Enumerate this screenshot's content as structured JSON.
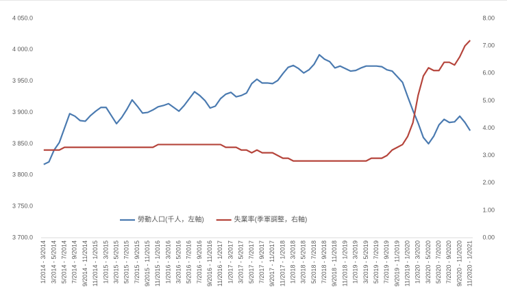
{
  "chart_data": {
    "type": "line",
    "categories": [
      "1/2014 - 3/2014",
      null,
      "3/2014 - 5/2014",
      null,
      "5/2014 - 7/2014",
      null,
      "7/2014 - 9/2014",
      null,
      "9/2014 - 11/2014",
      null,
      "11/2014 - 1/2015",
      null,
      "1/2015 - 3/2015",
      null,
      "3/2015 - 5/2015",
      null,
      "5/2015 - 7/2015",
      null,
      "7/2015 - 9/2015",
      null,
      "9/2015 - 11/2015",
      null,
      "11/2015 - 1/2016",
      null,
      "1/2016 - 3/2016",
      null,
      "3/2016 - 5/2016",
      null,
      "5/2016 - 7/2016",
      null,
      "7/2016 - 9/2016",
      null,
      "9/2016 - 11/2016",
      null,
      "11/2016 - 1/2017",
      null,
      "1/2017 - 3/2017",
      null,
      "3/2017 - 5/2017",
      null,
      "5/2017 - 7/2017",
      null,
      "7/2017 - 9/2017",
      null,
      "9/2017 - 11/2017",
      null,
      "11/2017 - 1/2018",
      null,
      "1/2018 - 3/2018",
      null,
      "3/2018 - 5/2018",
      null,
      "5/2018 - 7/2018",
      null,
      "7/2018 - 9/2018",
      null,
      "9/2018 - 11/2018",
      null,
      "11/2018 - 1/2019",
      null,
      "1/2019 - 3/2019",
      null,
      "3/2019 - 5/2019",
      null,
      "5/2019 - 7/2019",
      null,
      "7/2019 - 9/2019",
      null,
      "9/2019 - 11/2019",
      null,
      "11/2019 - 1/2020",
      null,
      "1/2020 - 3/2020",
      null,
      "3/2020 - 5/2020",
      null,
      "5/2020 - 7/2020",
      null,
      "7/2020 - 9/2020",
      null,
      "9/2020 - 11/2020",
      null,
      "11/2020 - 1/2021"
    ],
    "series": [
      {
        "name": "勞動人口(千人，左軸)",
        "color": "#4a7ab0",
        "axis": "y",
        "values": [
          3817,
          3821,
          3840,
          3852,
          3875,
          3898,
          3894,
          3887,
          3886,
          3895,
          3902,
          3908,
          3908,
          3895,
          3882,
          3892,
          3905,
          3920,
          3910,
          3899,
          3900,
          3904,
          3909,
          3911,
          3914,
          3908,
          3902,
          3911,
          3922,
          3933,
          3927,
          3919,
          3907,
          3910,
          3922,
          3929,
          3932,
          3925,
          3927,
          3931,
          3946,
          3953,
          3947,
          3947,
          3946,
          3951,
          3962,
          3972,
          3975,
          3970,
          3963,
          3968,
          3977,
          3992,
          3985,
          3981,
          3971,
          3974,
          3970,
          3966,
          3967,
          3971,
          3974,
          3974,
          3974,
          3973,
          3968,
          3966,
          3957,
          3948,
          3925,
          3903,
          3883,
          3860,
          3850,
          3862,
          3880,
          3889,
          3884,
          3885,
          3894,
          3884,
          3871
        ]
      },
      {
        "name": "失業率(季軍調整，右軸)",
        "color": "#b5443b",
        "axis": "y2",
        "values": [
          3.2,
          3.2,
          3.2,
          3.2,
          3.3,
          3.3,
          3.3,
          3.3,
          3.3,
          3.3,
          3.3,
          3.3,
          3.3,
          3.3,
          3.3,
          3.3,
          3.3,
          3.3,
          3.3,
          3.3,
          3.3,
          3.3,
          3.4,
          3.4,
          3.4,
          3.4,
          3.4,
          3.4,
          3.4,
          3.4,
          3.4,
          3.4,
          3.4,
          3.4,
          3.4,
          3.3,
          3.3,
          3.3,
          3.2,
          3.2,
          3.1,
          3.2,
          3.1,
          3.1,
          3.1,
          3.0,
          2.9,
          2.9,
          2.8,
          2.8,
          2.8,
          2.8,
          2.8,
          2.8,
          2.8,
          2.8,
          2.8,
          2.8,
          2.8,
          2.8,
          2.8,
          2.8,
          2.8,
          2.9,
          2.9,
          2.9,
          3.0,
          3.2,
          3.3,
          3.4,
          3.7,
          4.2,
          5.2,
          5.9,
          6.2,
          6.1,
          6.1,
          6.4,
          6.4,
          6.3,
          6.6,
          7.0,
          7.2
        ]
      }
    ],
    "ylim": [
      3700,
      4050
    ],
    "yticks": [
      {
        "value": 3700,
        "label": "3 700.0"
      },
      {
        "value": 3750,
        "label": "3 750.0"
      },
      {
        "value": 3800,
        "label": "3 800.0"
      },
      {
        "value": 3850,
        "label": "3 850.0"
      },
      {
        "value": 3900,
        "label": "3 900.0"
      },
      {
        "value": 3950,
        "label": "3 950.0"
      },
      {
        "value": 4000,
        "label": "4 000.0"
      },
      {
        "value": 4050,
        "label": "4 050.0"
      }
    ],
    "y2lim": [
      0,
      8
    ],
    "y2ticks": [
      {
        "value": 0,
        "label": "0.00"
      },
      {
        "value": 1,
        "label": "1.00"
      },
      {
        "value": 2,
        "label": "2.00"
      },
      {
        "value": 3,
        "label": "3.00"
      },
      {
        "value": 4,
        "label": "4.00"
      },
      {
        "value": 5,
        "label": "5.00"
      },
      {
        "value": 6,
        "label": "6.00"
      },
      {
        "value": 7,
        "label": "7.00"
      },
      {
        "value": 8,
        "label": "8.00"
      }
    ],
    "legend": "bottom-left",
    "grid": false
  }
}
